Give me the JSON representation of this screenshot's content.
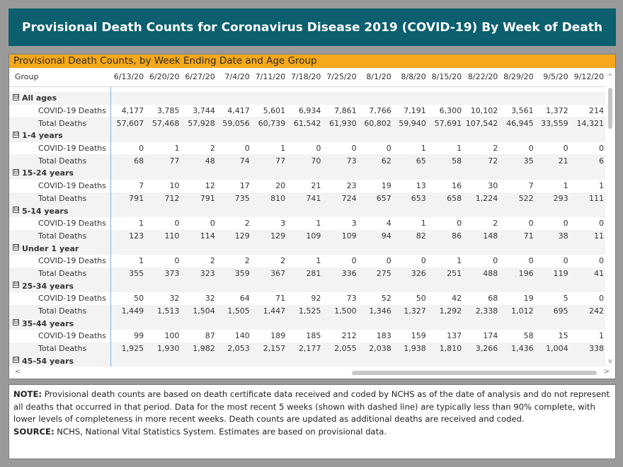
{
  "header": {
    "title": "Provisional Death Counts for Coronavirus Disease 2019 (COVID-19) By Week of Death"
  },
  "report": {
    "title": "Provisional Death Counts, by Week Ending Date and Age Group",
    "group_header": "Group",
    "columns": [
      "6/13/20",
      "6/20/20",
      "6/27/20",
      "7/4/20",
      "7/11/20",
      "7/18/20",
      "7/25/20",
      "8/1/20",
      "8/8/20",
      "8/15/20",
      "8/22/20",
      "8/29/20",
      "9/5/20",
      "9/12/20"
    ],
    "collapse_glyph": "⊟",
    "groups": [
      {
        "name": "All ages",
        "rows": [
          {
            "label": "COVID-19 Deaths",
            "values": [
              "4,177",
              "3,785",
              "3,744",
              "4,417",
              "5,601",
              "6,934",
              "7,861",
              "7,766",
              "7,191",
              "6,300",
              "10,102",
              "3,561",
              "1,372",
              "214"
            ]
          },
          {
            "label": "Total Deaths",
            "values": [
              "57,607",
              "57,468",
              "57,928",
              "59,056",
              "60,739",
              "61,542",
              "61,930",
              "60,802",
              "59,940",
              "57,691",
              "107,542",
              "46,945",
              "33,559",
              "14,321"
            ]
          }
        ]
      },
      {
        "name": "1-4 years",
        "rows": [
          {
            "label": "COVID-19 Deaths",
            "values": [
              "0",
              "1",
              "2",
              "0",
              "1",
              "0",
              "0",
              "0",
              "1",
              "1",
              "2",
              "0",
              "0",
              "0"
            ]
          },
          {
            "label": "Total Deaths",
            "values": [
              "68",
              "77",
              "48",
              "74",
              "77",
              "70",
              "73",
              "62",
              "65",
              "58",
              "72",
              "35",
              "21",
              "6"
            ]
          }
        ]
      },
      {
        "name": "15-24 years",
        "rows": [
          {
            "label": "COVID-19 Deaths",
            "values": [
              "7",
              "10",
              "12",
              "17",
              "20",
              "21",
              "23",
              "19",
              "13",
              "16",
              "30",
              "7",
              "1",
              "1"
            ]
          },
          {
            "label": "Total Deaths",
            "values": [
              "791",
              "712",
              "791",
              "735",
              "810",
              "741",
              "724",
              "657",
              "653",
              "658",
              "1,224",
              "522",
              "293",
              "111"
            ]
          }
        ]
      },
      {
        "name": "5-14 years",
        "rows": [
          {
            "label": "COVID-19 Deaths",
            "values": [
              "1",
              "0",
              "0",
              "2",
              "3",
              "1",
              "3",
              "4",
              "1",
              "0",
              "2",
              "0",
              "0",
              "0"
            ]
          },
          {
            "label": "Total Deaths",
            "values": [
              "123",
              "110",
              "114",
              "129",
              "129",
              "109",
              "109",
              "94",
              "82",
              "86",
              "148",
              "71",
              "38",
              "11"
            ]
          }
        ]
      },
      {
        "name": "Under 1 year",
        "rows": [
          {
            "label": "COVID-19 Deaths",
            "values": [
              "1",
              "0",
              "2",
              "2",
              "2",
              "1",
              "0",
              "0",
              "0",
              "1",
              "0",
              "0",
              "0",
              "0"
            ]
          },
          {
            "label": "Total Deaths",
            "values": [
              "355",
              "373",
              "323",
              "359",
              "367",
              "281",
              "336",
              "275",
              "326",
              "251",
              "488",
              "196",
              "119",
              "41"
            ]
          }
        ]
      },
      {
        "name": "25-34 years",
        "rows": [
          {
            "label": "COVID-19 Deaths",
            "values": [
              "50",
              "32",
              "32",
              "64",
              "71",
              "92",
              "73",
              "52",
              "50",
              "42",
              "68",
              "19",
              "5",
              "0"
            ]
          },
          {
            "label": "Total Deaths",
            "values": [
              "1,449",
              "1,513",
              "1,504",
              "1,505",
              "1,447",
              "1,525",
              "1,500",
              "1,346",
              "1,327",
              "1,292",
              "2,338",
              "1,012",
              "695",
              "242"
            ]
          }
        ]
      },
      {
        "name": "35-44 years",
        "rows": [
          {
            "label": "COVID-19 Deaths",
            "values": [
              "99",
              "100",
              "87",
              "140",
              "189",
              "185",
              "212",
              "183",
              "159",
              "137",
              "174",
              "58",
              "15",
              "1"
            ]
          },
          {
            "label": "Total Deaths",
            "values": [
              "1,925",
              "1,930",
              "1,982",
              "2,053",
              "2,157",
              "2,177",
              "2,055",
              "2,038",
              "1,938",
              "1,810",
              "3,266",
              "1,436",
              "1,004",
              "338"
            ]
          }
        ]
      },
      {
        "name": "45-54 years",
        "rows": []
      }
    ]
  },
  "scrollbars": {
    "up": "^",
    "down": "v",
    "left": "<",
    "right": ">"
  },
  "notes": {
    "note_label": "NOTE:",
    "note_text": " Provisional death counts are based on death certificate data received and coded by NCHS as of the date of analysis and do not represent all deaths that occurred in that period. Data for the most recent 5 weeks (shown with dashed line) are typically less than 90% complete, with lower levels of completeness in more recent weeks.  Death counts are updated as additional deaths are received and coded.",
    "source_label": "SOURCE:",
    "source_text": " NCHS, National Vital Statistics System. Estimates are based on provisional data."
  }
}
